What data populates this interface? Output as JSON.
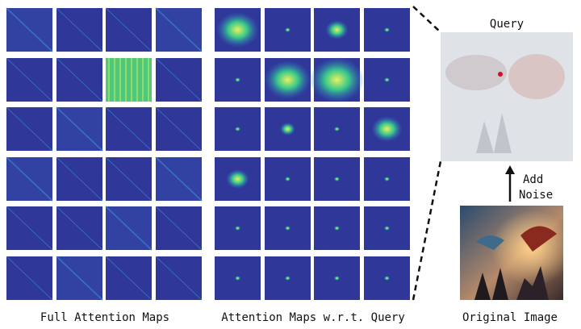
{
  "query_label": "Query",
  "noise_label": [
    "Add",
    "Noise"
  ],
  "captions": {
    "full": "Full Attention Maps",
    "query": "Attention Maps w.r.t. Query",
    "original": "Original Image"
  }
}
